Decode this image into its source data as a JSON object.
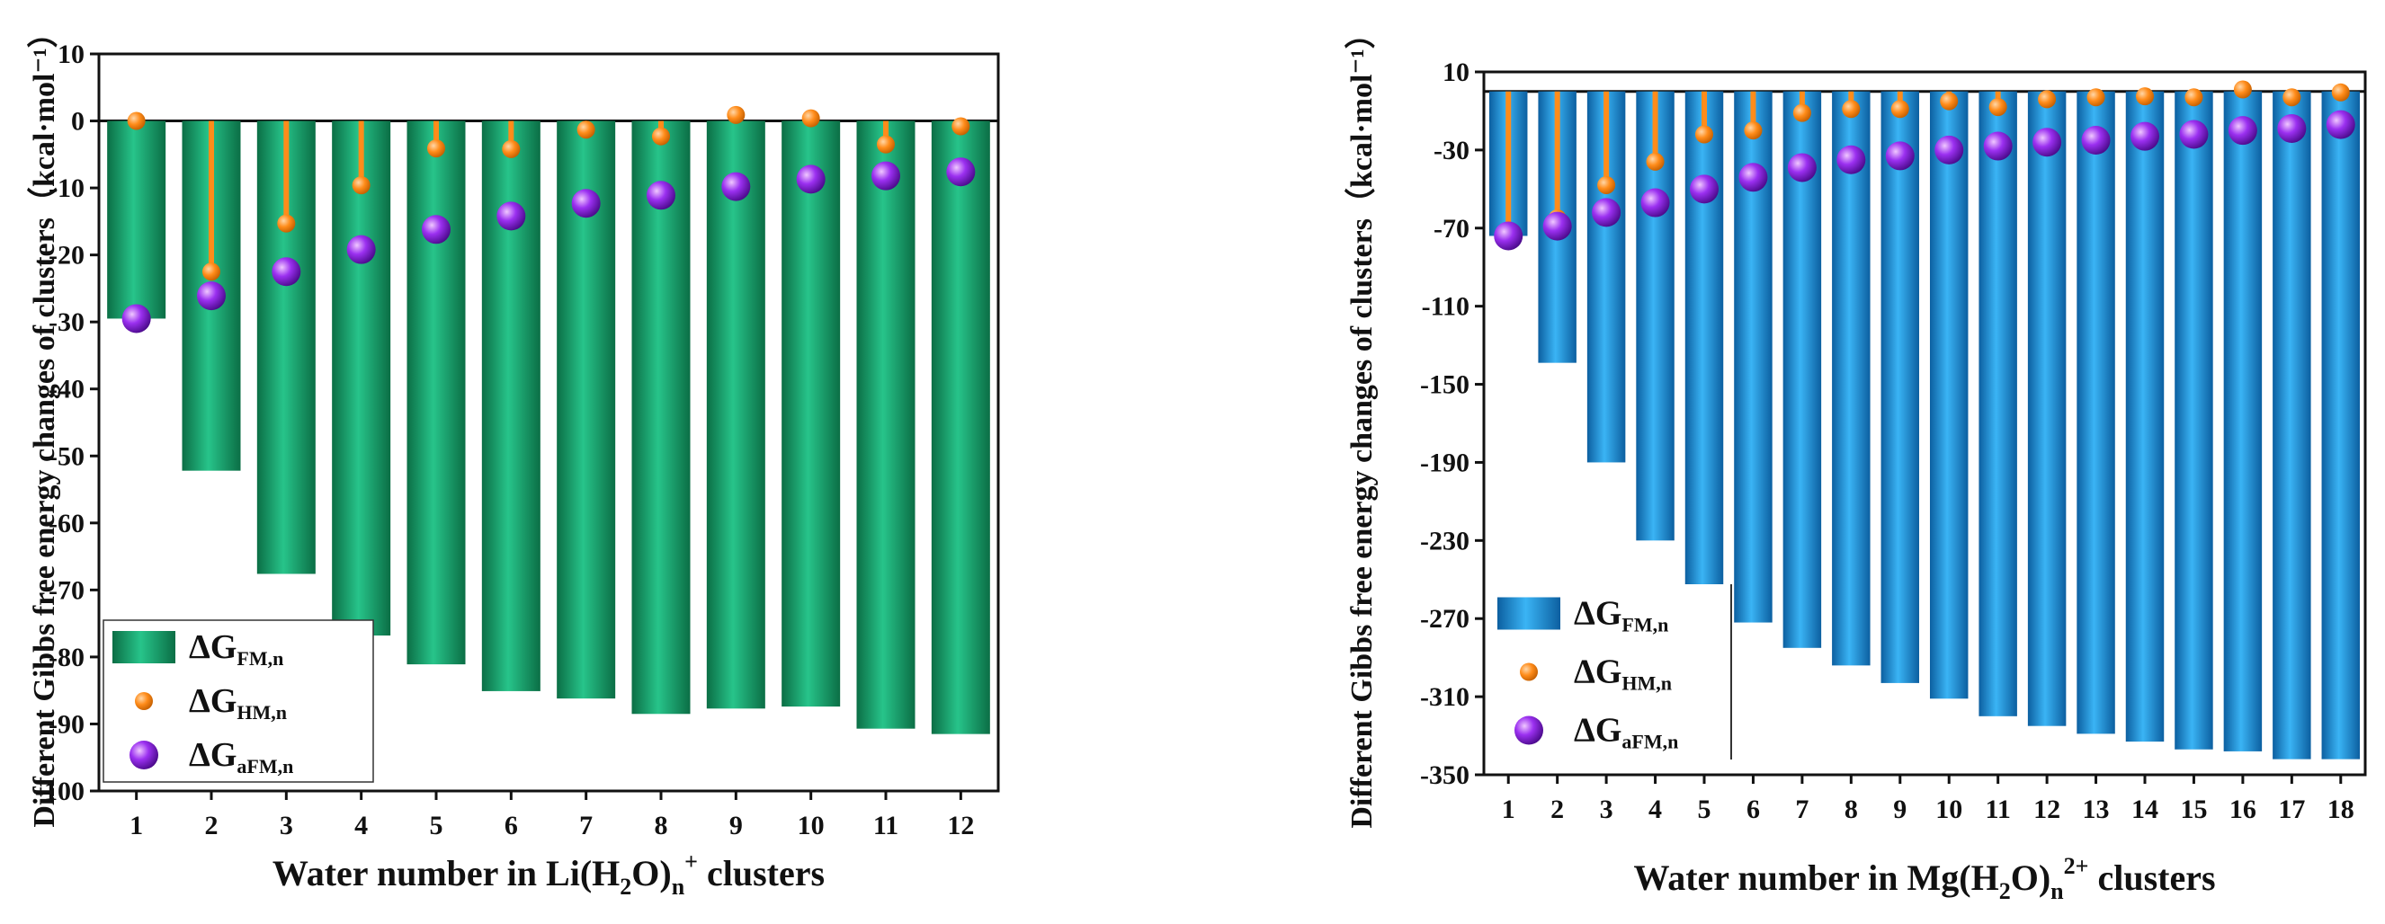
{
  "chart_data": [
    {
      "type": "bar",
      "xlabel_parts": [
        "Water number in Li(H",
        "2",
        "O)",
        "n",
        "+",
        " clusters"
      ],
      "ylabel": "Different Gibbs free energy changes of clusters（kcal·mol⁻¹）",
      "categories": [
        "1",
        "2",
        "3",
        "4",
        "5",
        "6",
        "7",
        "8",
        "9",
        "10",
        "11",
        "12"
      ],
      "ylim": [
        -100,
        10
      ],
      "yticks": [
        "10",
        "0",
        "-10",
        "-20",
        "-30",
        "-40",
        "-50",
        "-60",
        "-70",
        "-80",
        "-90",
        "-100"
      ],
      "series": [
        {
          "name": "ΔG",
          "sub": "FM,n",
          "kind": "bar",
          "values": [
            -29.5,
            -52.2,
            -67.6,
            -76.8,
            -81.1,
            -85.1,
            -86.2,
            -88.5,
            -87.7,
            -87.4,
            -90.7,
            -91.5
          ]
        },
        {
          "name": "ΔG",
          "sub": "HM,n",
          "kind": "stem",
          "values": [
            0,
            -22.5,
            -15.3,
            -9.6,
            -4.1,
            -4.2,
            -1.3,
            -2.3,
            0.9,
            0.4,
            -3.5,
            -0.8
          ]
        },
        {
          "name": "ΔG",
          "sub": "aFM,n",
          "kind": "point",
          "values": [
            -29.5,
            -26.1,
            -22.5,
            -19.2,
            -16.2,
            -14.2,
            -12.3,
            -11.1,
            -9.8,
            -8.7,
            -8.2,
            -7.6
          ]
        }
      ],
      "legend_placement": "bottom-left",
      "colors": {
        "bar": "#1f9f6f",
        "bar_dark": "#0b6e45",
        "stem": "#ff8c1a",
        "point": "#8a2be2"
      }
    },
    {
      "type": "bar",
      "xlabel_parts": [
        "Water number in Mg(H",
        "2",
        "O)",
        "n",
        "2+",
        " clusters"
      ],
      "ylabel": "Different Gibbs free energy changes of clusters（kcal·mol⁻¹）",
      "categories": [
        "1",
        "2",
        "3",
        "4",
        "5",
        "6",
        "7",
        "8",
        "9",
        "10",
        "11",
        "12",
        "13",
        "14",
        "15",
        "16",
        "17",
        "18"
      ],
      "ylim": [
        -350,
        10
      ],
      "yticks": [
        "10",
        "-30",
        "-70",
        "-110",
        "-150",
        "-190",
        "-230",
        "-270",
        "-310",
        "-350"
      ],
      "series": [
        {
          "name": "ΔG",
          "sub": "FM,n",
          "kind": "bar",
          "values": [
            -74,
            -139,
            -190,
            -230,
            -253,
            -272,
            -285,
            -294,
            -303,
            -311,
            -320,
            -325,
            -329,
            -333,
            -337,
            -338,
            -342,
            -342
          ]
        },
        {
          "name": "ΔG",
          "sub": "HM,n",
          "kind": "stem",
          "values": [
            -72,
            -65,
            -48,
            -36,
            -22,
            -20,
            -11,
            -9,
            -9,
            -5,
            -8,
            -4,
            -3,
            -2.5,
            -3,
            1,
            -3,
            -0.5
          ]
        },
        {
          "name": "ΔG",
          "sub": "aFM,n",
          "kind": "point",
          "values": [
            -74,
            -69,
            -62,
            -57,
            -50,
            -44,
            -39,
            -35,
            -33,
            -30,
            -28,
            -26,
            -25,
            -23,
            -22,
            -20,
            -19,
            -17
          ]
        }
      ],
      "legend_placement": "bottom-left",
      "colors": {
        "bar": "#1a9be6",
        "bar_dark": "#0c5fa0",
        "stem": "#ff8c1a",
        "point": "#8a2be2"
      }
    }
  ]
}
